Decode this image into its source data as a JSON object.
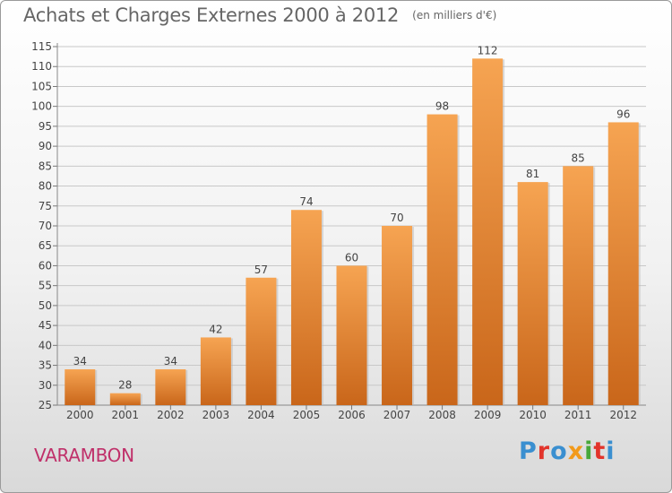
{
  "title": "Achats et Charges Externes 2000 à 2012",
  "unit_note": "(en milliers d'€)",
  "commune": "VARAMBON",
  "logo": {
    "letters": [
      "P",
      "r",
      "o",
      "x",
      "i",
      "t",
      "i"
    ],
    "colors": [
      "#3a8fd0",
      "#e2342b",
      "#3a8fd0",
      "#f29a1a",
      "#47a83a",
      "#e2342b",
      "#3a8fd0"
    ]
  },
  "chart_data": {
    "type": "bar",
    "categories": [
      "2000",
      "2001",
      "2002",
      "2003",
      "2004",
      "2005",
      "2006",
      "2007",
      "2008",
      "2009",
      "2010",
      "2011",
      "2012"
    ],
    "values": [
      34,
      28,
      34,
      42,
      57,
      74,
      60,
      70,
      98,
      112,
      81,
      85,
      96
    ],
    "data_labels": [
      "34",
      "28",
      "34",
      "42",
      "57",
      "74",
      "60",
      "70",
      "98",
      "112",
      "81",
      "85",
      "96"
    ],
    "ylim": [
      25,
      115
    ],
    "yticks": [
      "25",
      "30",
      "35",
      "40",
      "45",
      "50",
      "55",
      "60",
      "65",
      "70",
      "75",
      "80",
      "85",
      "90",
      "95",
      "100",
      "105",
      "110",
      "115"
    ],
    "grid": true,
    "colors": {
      "bar_top": "#f6a452",
      "bar_bottom": "#c9661a",
      "grid": "#c8c8c8",
      "text": "#444444"
    }
  }
}
